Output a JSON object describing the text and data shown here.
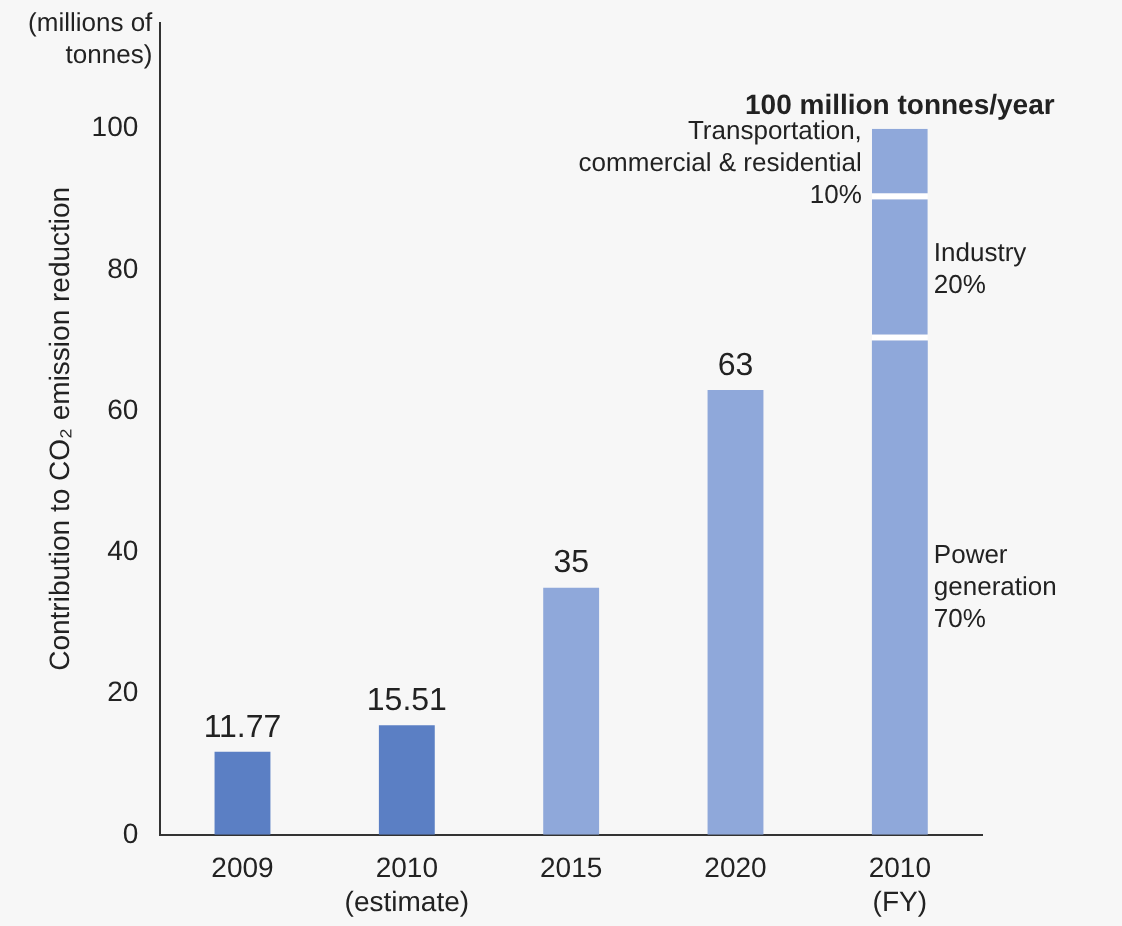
{
  "chart_data": {
    "type": "bar",
    "stacked": true,
    "ylabel": "Contribution to CO₂ emission reduction",
    "categories": [
      "2009",
      "2010\n(estimate)",
      "2015",
      "2020",
      "2010\n(FY)"
    ],
    "series": [
      {
        "colors": [
          "#5b7fc4",
          "#5b7fc4",
          "#8fa8da",
          "#8fa8da",
          null
        ],
        "values": [
          11.77,
          15.51,
          35,
          63,
          null
        ],
        "value_labels": [
          "11.77",
          "15.51",
          "35",
          "63",
          null
        ]
      },
      {
        "name": "Power\ngeneration\n70%",
        "color": "#8fa8da",
        "values": [
          null,
          null,
          null,
          null,
          70
        ]
      },
      {
        "name": "Industry\n20%",
        "color": "#8fa8da",
        "values": [
          null,
          null,
          null,
          null,
          20
        ]
      },
      {
        "name": "Transportation,\ncommercial & residential\n10%",
        "color": "#8fa8da",
        "values": [
          null,
          null,
          null,
          null,
          10
        ]
      }
    ],
    "totals": [
      null,
      null,
      null,
      null,
      "100 million tonnes/year"
    ],
    "annotations": [
      "(millions of\ntonnes)"
    ],
    "ylim": [
      0,
      115
    ],
    "yticks": [
      0,
      20,
      40,
      60,
      80,
      100
    ],
    "grid": false,
    "legend": false
  }
}
